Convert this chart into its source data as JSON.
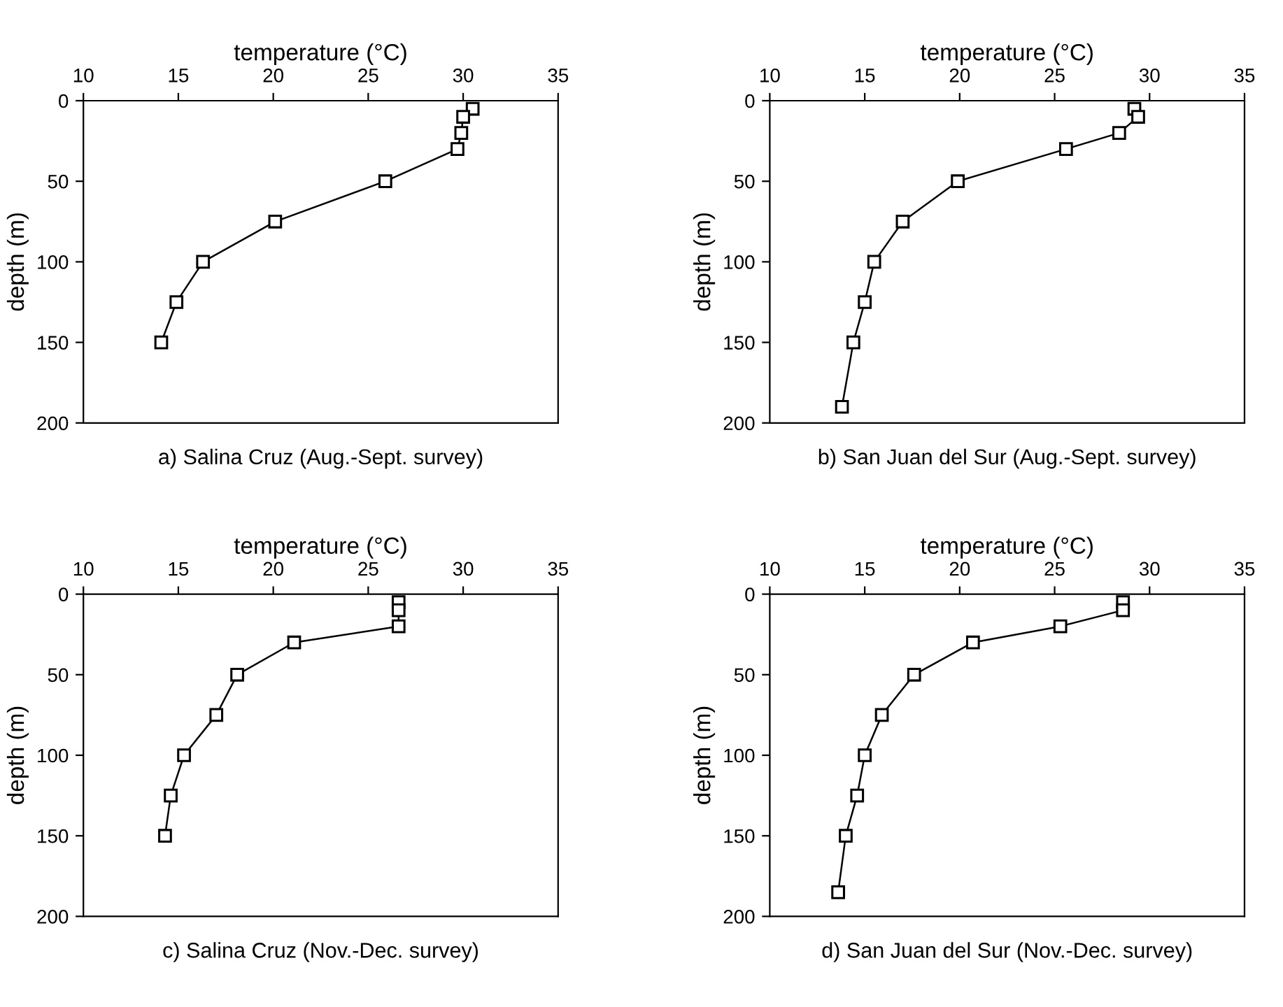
{
  "chart_data": [
    {
      "type": "line",
      "title": "a) Salina Cruz (Aug.-Sept. survey)",
      "xlabel": "temperature (°C)",
      "ylabel": "depth (m)",
      "xlim": [
        10,
        35
      ],
      "xticks": [
        10,
        15,
        20,
        25,
        30,
        35
      ],
      "ylim": [
        200,
        0
      ],
      "yticks": [
        0,
        50,
        100,
        150,
        200
      ],
      "marker": "square",
      "line_style": "solid",
      "grid": false,
      "series": [
        {
          "color": "#000000",
          "x": [
            30.5,
            30.0,
            29.9,
            29.7,
            25.9,
            20.1,
            16.3,
            14.9,
            14.1
          ],
          "values": [
            5,
            10,
            20,
            30,
            50,
            75,
            100,
            125,
            150
          ]
        }
      ]
    },
    {
      "type": "line",
      "title": "b) San Juan del Sur (Aug.-Sept. survey)",
      "xlabel": "temperature (°C)",
      "ylabel": "depth (m)",
      "xlim": [
        10,
        35
      ],
      "xticks": [
        10,
        15,
        20,
        25,
        30,
        35
      ],
      "ylim": [
        200,
        0
      ],
      "yticks": [
        0,
        50,
        100,
        150,
        200
      ],
      "marker": "square",
      "line_style": "solid",
      "grid": false,
      "series": [
        {
          "color": "#000000",
          "x": [
            29.2,
            29.4,
            28.4,
            25.6,
            19.9,
            17.0,
            15.5,
            15.0,
            14.4,
            13.8
          ],
          "values": [
            5,
            10,
            20,
            30,
            50,
            75,
            100,
            125,
            150,
            190
          ]
        }
      ]
    },
    {
      "type": "line",
      "title": "c) Salina Cruz (Nov.-Dec. survey)",
      "xlabel": "temperature (°C)",
      "ylabel": "depth (m)",
      "xlim": [
        10,
        35
      ],
      "xticks": [
        10,
        15,
        20,
        25,
        30,
        35
      ],
      "ylim": [
        200,
        0
      ],
      "yticks": [
        0,
        50,
        100,
        150,
        200
      ],
      "marker": "square",
      "line_style": "solid",
      "grid": false,
      "series": [
        {
          "color": "#000000",
          "x": [
            26.6,
            26.6,
            26.6,
            21.1,
            18.1,
            17.0,
            15.3,
            14.6,
            14.3
          ],
          "values": [
            5,
            10,
            20,
            30,
            50,
            75,
            100,
            125,
            150
          ]
        }
      ]
    },
    {
      "type": "line",
      "title": "d) San Juan del Sur (Nov.-Dec. survey)",
      "xlabel": "temperature (°C)",
      "ylabel": "depth (m)",
      "xlim": [
        10,
        35
      ],
      "xticks": [
        10,
        15,
        20,
        25,
        30,
        35
      ],
      "ylim": [
        200,
        0
      ],
      "yticks": [
        0,
        50,
        100,
        150,
        200
      ],
      "marker": "square",
      "line_style": "solid",
      "grid": false,
      "series": [
        {
          "color": "#000000",
          "x": [
            28.6,
            28.6,
            25.3,
            20.7,
            17.6,
            15.9,
            15.0,
            14.6,
            14.0,
            13.6
          ],
          "values": [
            5,
            10,
            20,
            30,
            50,
            75,
            100,
            125,
            150,
            185
          ]
        }
      ]
    }
  ]
}
